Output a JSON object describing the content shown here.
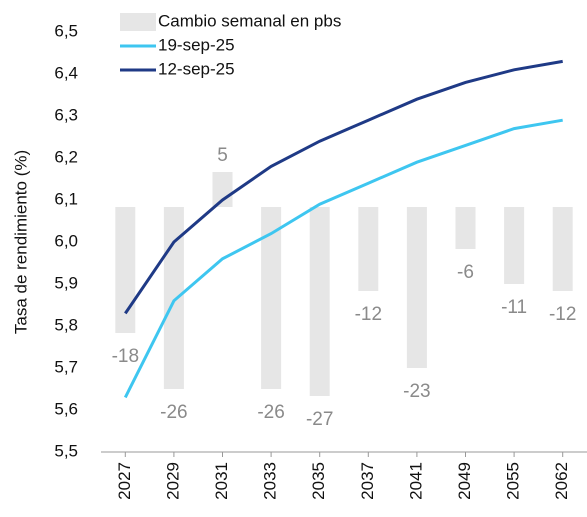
{
  "chart_data": {
    "type": "combo",
    "y_label": "Tasa de rendimiento (%)",
    "categories": [
      "2027",
      "2029",
      "2031",
      "2033",
      "2035",
      "2037",
      "2041",
      "2049",
      "2055",
      "2062"
    ],
    "series": [
      {
        "name": "Cambio semanal en pbs",
        "type": "bar",
        "axis": "y2",
        "color": "#e6e6e6",
        "values": [
          -18,
          -26,
          5,
          -26,
          -27,
          -12,
          -23,
          -6,
          -11,
          -12
        ]
      },
      {
        "name": "19-sep-25",
        "type": "line",
        "color": "#3ec6f0",
        "values": [
          5.63,
          5.86,
          5.96,
          6.02,
          6.09,
          6.14,
          6.19,
          6.23,
          6.27,
          6.29
        ]
      },
      {
        "name": "12-sep-25",
        "type": "line",
        "color": "#1f3a86",
        "values": [
          5.83,
          6.0,
          6.1,
          6.18,
          6.24,
          6.29,
          6.34,
          6.38,
          6.41,
          6.43
        ]
      }
    ],
    "ylim": [
      5.5,
      6.5
    ],
    "yticks": [
      {
        "value": 5.5,
        "label": "5,5"
      },
      {
        "value": 5.6,
        "label": "5,6"
      },
      {
        "value": 5.7,
        "label": "5,7"
      },
      {
        "value": 5.8,
        "label": "5,8"
      },
      {
        "value": 5.9,
        "label": "5,9"
      },
      {
        "value": 6.0,
        "label": "6,0"
      },
      {
        "value": 6.1,
        "label": "6,1"
      },
      {
        "value": 6.2,
        "label": "6,2"
      },
      {
        "value": 6.3,
        "label": "6,3"
      },
      {
        "value": 6.4,
        "label": "6,4"
      },
      {
        "value": 6.5,
        "label": "6,5"
      }
    ],
    "y2lim": [
      -35,
      25
    ],
    "grid": false
  }
}
